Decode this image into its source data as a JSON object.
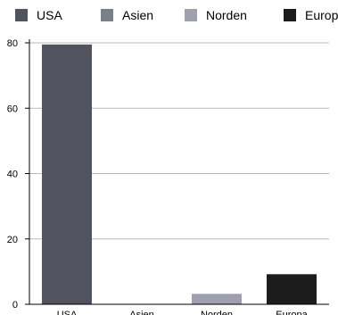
{
  "chart_data": {
    "type": "bar",
    "categories": [
      "USA",
      "Asien",
      "Norden",
      "Europa"
    ],
    "values": [
      79.5,
      0,
      3.2,
      9.2
    ],
    "ylim": [
      0,
      80
    ],
    "yticks": [
      0,
      20,
      40,
      60,
      80
    ],
    "grid": true,
    "legend_position": "top",
    "colors": [
      "#51545f",
      "#7b7f8a",
      "#9ea1ad",
      "#1c1c1c"
    ],
    "gridline_color": "#b9b9b9",
    "axis_color": "#000000"
  }
}
